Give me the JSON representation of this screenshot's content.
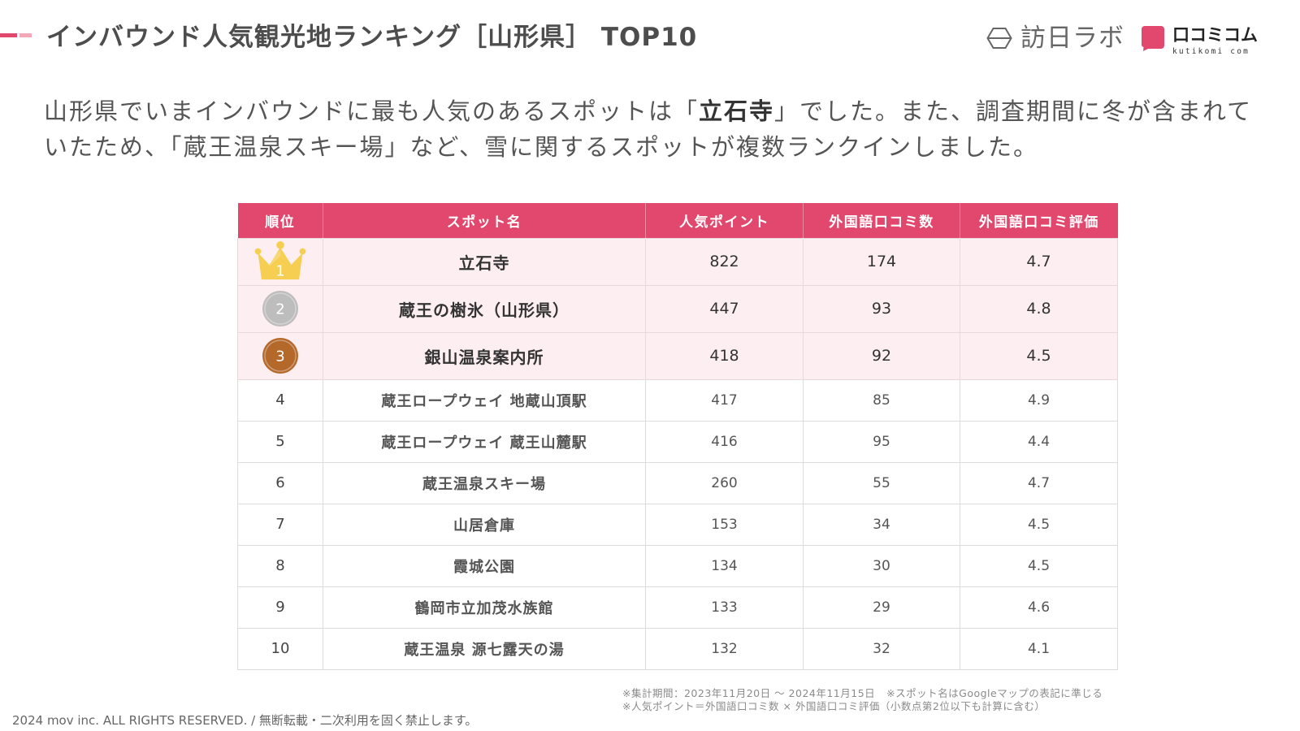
{
  "header": {
    "title": "インバウンド人気観光地ランキング［山形県］ TOP10"
  },
  "logos": {
    "honichi_labo": {
      "name": "訪日ラボ",
      "icon": "hexagon-logo-icon"
    },
    "kutikomi_com": {
      "name": "口コミコム",
      "sub": "kutikomi com",
      "icon": "speech-bubble-logo-icon"
    }
  },
  "lead": {
    "line1_prefix": "山形県でいまインバウンドに最も人気のあるスポットは「",
    "line1_emphasis": "立石寺",
    "line1_suffix": "」でした。また、調査期間に冬が含まれて",
    "line2": "いたため、「蔵王温泉スキー場」など、雪に関するスポットが複数ランクインしました。"
  },
  "table": {
    "columns": [
      "順位",
      "スポット名",
      "人気ポイント",
      "外国語口コミ数",
      "外国語口コミ評価"
    ],
    "rows": [
      {
        "rank": "1",
        "icon": "crown-icon",
        "spot": "立石寺",
        "points": "822",
        "reviews": "174",
        "rating": "4.7"
      },
      {
        "rank": "2",
        "icon": "silver-medal-icon",
        "spot": "蔵王の樹氷（山形県）",
        "points": "447",
        "reviews": "93",
        "rating": "4.8"
      },
      {
        "rank": "3",
        "icon": "bronze-medal-icon",
        "spot": "銀山温泉案内所",
        "points": "418",
        "reviews": "92",
        "rating": "4.5"
      },
      {
        "rank": "4",
        "spot": "蔵王ロープウェイ 地蔵山頂駅",
        "points": "417",
        "reviews": "85",
        "rating": "4.9"
      },
      {
        "rank": "5",
        "spot": "蔵王ロープウェイ 蔵王山麓駅",
        "points": "416",
        "reviews": "95",
        "rating": "4.4"
      },
      {
        "rank": "6",
        "spot": "蔵王温泉スキー場",
        "points": "260",
        "reviews": "55",
        "rating": "4.7"
      },
      {
        "rank": "7",
        "spot": "山居倉庫",
        "points": "153",
        "reviews": "34",
        "rating": "4.5"
      },
      {
        "rank": "8",
        "spot": "霞城公園",
        "points": "134",
        "reviews": "30",
        "rating": "4.5"
      },
      {
        "rank": "9",
        "spot": "鶴岡市立加茂水族館",
        "points": "133",
        "reviews": "29",
        "rating": "4.6"
      },
      {
        "rank": "10",
        "spot": "蔵王温泉 源七露天の湯",
        "points": "132",
        "reviews": "32",
        "rating": "4.1"
      }
    ]
  },
  "footnotes": {
    "period": "※集計期間：2023年11月20日 〜 2024年11月15日",
    "spot_names": "※スポット名はGoogleマップの表記に準じる",
    "formula": "※人気ポイント＝外国語口コミ数 × 外国語口コミ評価（小数点第2位以下も計算に含む）"
  },
  "footer": {
    "copyright": "2024 mov inc. ALL RIGHTS RESERVED. / 無断転載・二次利用を固く禁止します。"
  },
  "colors": {
    "accent": "#e2486d",
    "accent_light": "#f2a8b9",
    "highlight_row": "#fdeef2",
    "gold": "#f6cf52",
    "silver": "#bdbdbd",
    "bronze": "#b4682a",
    "title": "#4d4d4d",
    "text": "#555555"
  }
}
